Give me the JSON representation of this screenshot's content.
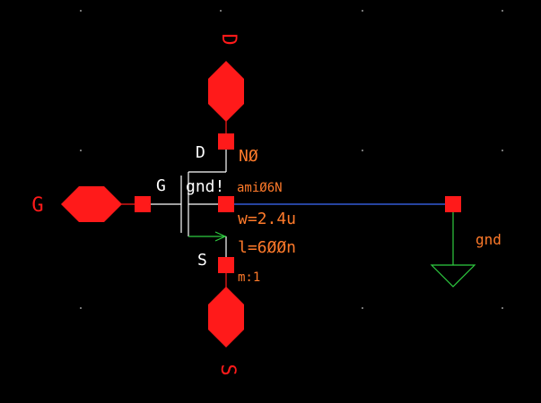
{
  "schematic": {
    "pins": {
      "drain": "D",
      "gate": "G",
      "source": "S"
    },
    "terminal_labels": {
      "drain": "D",
      "gate": "G",
      "source": "S"
    },
    "body_net": "gnd!",
    "drain_net": "NØ",
    "model": "amiØ6N",
    "width": "w=2.4u",
    "length": "l=6ØØn",
    "multiplier": "m:1",
    "ground_label": "gnd"
  },
  "colors": {
    "background": "#000000",
    "pin": "#ff1a1a",
    "wire": "#3c6cff",
    "device": "#ffffff",
    "annotation": "#ff7a2a",
    "ground": "#2ecc40"
  }
}
